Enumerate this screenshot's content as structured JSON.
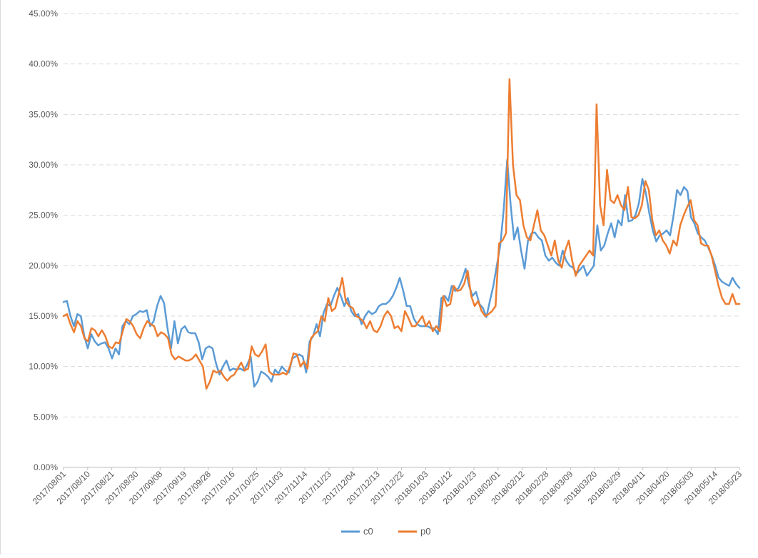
{
  "chart_data": {
    "type": "line",
    "title": "",
    "xlabel": "",
    "ylabel": "",
    "ylim": [
      0,
      0.45
    ],
    "y_ticks": [
      "0.00%",
      "5.00%",
      "10.00%",
      "15.00%",
      "20.00%",
      "25.00%",
      "30.00%",
      "35.00%",
      "40.00%",
      "45.00%"
    ],
    "x_tick_labels": [
      "2017/08/01",
      "2017/08/10",
      "2017/08/21",
      "2017/08/30",
      "2017/09/08",
      "2017/09/19",
      "2017/09/28",
      "2017/10/16",
      "2017/10/25",
      "2017/11/03",
      "2017/11/14",
      "2017/11/23",
      "2017/12/04",
      "2017/12/13",
      "2017/12/22",
      "2018/01/03",
      "2018/01/12",
      "2018/01/23",
      "2018/02/01",
      "2018/02/12",
      "2018/02/28",
      "2018/03/09",
      "2018/03/20",
      "2018/03/29",
      "2018/04/11",
      "2018/04/20",
      "2018/05/03",
      "2018/05/14",
      "2018/05/23"
    ],
    "grid": "horizontal-dashed",
    "legend": "bottom",
    "series": [
      {
        "name": "c0",
        "color": "#5b9bd5",
        "values": [
          0.164,
          0.165,
          0.15,
          0.14,
          0.152,
          0.15,
          0.13,
          0.118,
          0.132,
          0.125,
          0.121,
          0.123,
          0.124,
          0.118,
          0.108,
          0.118,
          0.112,
          0.14,
          0.145,
          0.142,
          0.15,
          0.152,
          0.155,
          0.154,
          0.156,
          0.14,
          0.145,
          0.16,
          0.17,
          0.163,
          0.138,
          0.118,
          0.145,
          0.123,
          0.137,
          0.14,
          0.134,
          0.133,
          0.133,
          0.124,
          0.107,
          0.118,
          0.12,
          0.118,
          0.103,
          0.092,
          0.1,
          0.106,
          0.096,
          0.098,
          0.097,
          0.098,
          0.096,
          0.102,
          0.11,
          0.08,
          0.085,
          0.095,
          0.093,
          0.09,
          0.085,
          0.097,
          0.093,
          0.1,
          0.096,
          0.094,
          0.108,
          0.11,
          0.112,
          0.11,
          0.094,
          0.125,
          0.13,
          0.142,
          0.13,
          0.153,
          0.162,
          0.16,
          0.17,
          0.178,
          0.17,
          0.16,
          0.168,
          0.155,
          0.15,
          0.152,
          0.142,
          0.15,
          0.155,
          0.152,
          0.154,
          0.16,
          0.162,
          0.162,
          0.165,
          0.17,
          0.178,
          0.188,
          0.175,
          0.16,
          0.16,
          0.148,
          0.142,
          0.14,
          0.14,
          0.14,
          0.138,
          0.138,
          0.132,
          0.168,
          0.17,
          0.165,
          0.18,
          0.175,
          0.178,
          0.186,
          0.197,
          0.18,
          0.17,
          0.174,
          0.162,
          0.158,
          0.149,
          0.165,
          0.18,
          0.2,
          0.22,
          0.256,
          0.305,
          0.26,
          0.226,
          0.238,
          0.215,
          0.197,
          0.225,
          0.232,
          0.233,
          0.228,
          0.225,
          0.21,
          0.205,
          0.208,
          0.203,
          0.2,
          0.215,
          0.205,
          0.2,
          0.198,
          0.192,
          0.196,
          0.2,
          0.19,
          0.195,
          0.2,
          0.24,
          0.215,
          0.22,
          0.232,
          0.242,
          0.228,
          0.245,
          0.24,
          0.27,
          0.244,
          0.245,
          0.25,
          0.262,
          0.286,
          0.272,
          0.252,
          0.235,
          0.224,
          0.23,
          0.232,
          0.235,
          0.23,
          0.25,
          0.275,
          0.27,
          0.278,
          0.274,
          0.248,
          0.242,
          0.232,
          0.228,
          0.225,
          0.218,
          0.21,
          0.2,
          0.188,
          0.184,
          0.182,
          0.18,
          0.188,
          0.182,
          0.178
        ]
      },
      {
        "name": "p0",
        "color": "#ed7d31",
        "values": [
          0.15,
          0.152,
          0.142,
          0.134,
          0.145,
          0.14,
          0.128,
          0.125,
          0.138,
          0.136,
          0.13,
          0.136,
          0.13,
          0.12,
          0.118,
          0.124,
          0.123,
          0.135,
          0.147,
          0.145,
          0.14,
          0.132,
          0.128,
          0.138,
          0.145,
          0.142,
          0.14,
          0.13,
          0.134,
          0.132,
          0.128,
          0.112,
          0.107,
          0.11,
          0.108,
          0.106,
          0.106,
          0.108,
          0.112,
          0.106,
          0.1,
          0.078,
          0.085,
          0.096,
          0.094,
          0.096,
          0.09,
          0.086,
          0.09,
          0.092,
          0.098,
          0.104,
          0.096,
          0.098,
          0.12,
          0.112,
          0.11,
          0.115,
          0.122,
          0.095,
          0.092,
          0.092,
          0.092,
          0.094,
          0.092,
          0.1,
          0.113,
          0.112,
          0.1,
          0.105,
          0.098,
          0.128,
          0.132,
          0.135,
          0.15,
          0.145,
          0.168,
          0.155,
          0.158,
          0.172,
          0.188,
          0.165,
          0.16,
          0.158,
          0.15,
          0.148,
          0.145,
          0.138,
          0.145,
          0.136,
          0.134,
          0.14,
          0.15,
          0.155,
          0.15,
          0.138,
          0.14,
          0.135,
          0.155,
          0.148,
          0.14,
          0.14,
          0.145,
          0.15,
          0.14,
          0.145,
          0.135,
          0.14,
          0.135,
          0.17,
          0.16,
          0.162,
          0.18,
          0.175,
          0.176,
          0.182,
          0.195,
          0.17,
          0.16,
          0.165,
          0.155,
          0.15,
          0.152,
          0.155,
          0.16,
          0.222,
          0.225,
          0.232,
          0.385,
          0.3,
          0.27,
          0.265,
          0.24,
          0.228,
          0.225,
          0.24,
          0.255,
          0.235,
          0.23,
          0.22,
          0.21,
          0.225,
          0.205,
          0.198,
          0.215,
          0.225,
          0.205,
          0.19,
          0.2,
          0.205,
          0.21,
          0.215,
          0.21,
          0.36,
          0.26,
          0.24,
          0.295,
          0.265,
          0.262,
          0.27,
          0.26,
          0.255,
          0.278,
          0.248,
          0.247,
          0.25,
          0.26,
          0.284,
          0.275,
          0.245,
          0.23,
          0.235,
          0.225,
          0.22,
          0.212,
          0.225,
          0.22,
          0.24,
          0.25,
          0.258,
          0.265,
          0.245,
          0.24,
          0.222,
          0.22,
          0.22,
          0.21,
          0.195,
          0.18,
          0.168,
          0.162,
          0.162,
          0.172,
          0.162,
          0.162
        ]
      }
    ]
  }
}
